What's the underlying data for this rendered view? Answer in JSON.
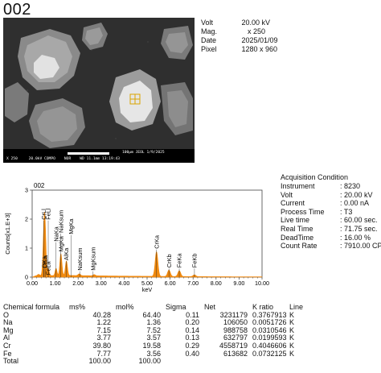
{
  "title": "002",
  "image_caption": {
    "scale": "100μm",
    "org": "JEOL",
    "date": "1/9/2025",
    "line2": "X 250     20.0kV COMPO    NOR    WD 11.1mm 13:19:43"
  },
  "metadata": [
    {
      "key": "Volt",
      "value": "20.00 kV"
    },
    {
      "key": "Mag.",
      "value": "   x 250"
    },
    {
      "key": "Date",
      "value": "2025/01/09"
    },
    {
      "key": "Pixel",
      "value": "1280 x 960"
    }
  ],
  "acquisition": {
    "heading": "Acquisition Condition",
    "rows": [
      {
        "key": "Instrument",
        "value": ": 8230"
      },
      {
        "key": "Volt",
        "value": ":  20.00 kV"
      },
      {
        "key": "Current",
        "value": ": 0.00 nA"
      },
      {
        "key": "Process Time",
        "value": ": T3"
      },
      {
        "key": "Live time",
        "value": ": 60.00 sec."
      },
      {
        "key": "Real Time",
        "value": ": 71.75 sec."
      },
      {
        "key": "DeadTime",
        "value": ": 16.00 %"
      },
      {
        "key": "Count Rate",
        "value": ": 7910.00 CPS"
      }
    ]
  },
  "chart_data": {
    "type": "area",
    "title": "002",
    "xlabel": "keV",
    "ylabel": "Counts[x1.E+3]",
    "xlim": [
      0,
      10
    ],
    "ylim": [
      0,
      3
    ],
    "x_ticks": [
      "0.00",
      "1.00",
      "2.00",
      "3.00",
      "4.00",
      "5.00",
      "6.00",
      "7.00",
      "8.00",
      "9.00",
      "10.00"
    ],
    "y_ticks": [
      "0",
      "1",
      "2",
      "3"
    ],
    "grid": false,
    "color": "#f08a10",
    "peaks": [
      {
        "x": 0.28,
        "y": 0.05,
        "w": 0.05
      },
      {
        "x": 0.52,
        "y": 1.6,
        "w": 0.045
      },
      {
        "x": 0.57,
        "y": 1.0,
        "w": 0.04
      },
      {
        "x": 0.7,
        "y": 0.25,
        "w": 0.04
      },
      {
        "x": 1.04,
        "y": 0.25,
        "w": 0.04
      },
      {
        "x": 1.25,
        "y": 0.75,
        "w": 0.045
      },
      {
        "x": 1.49,
        "y": 0.5,
        "w": 0.045
      },
      {
        "x": 2.05,
        "y": 0.06,
        "w": 0.05
      },
      {
        "x": 2.7,
        "y": 0.04,
        "w": 0.05
      },
      {
        "x": 5.41,
        "y": 0.85,
        "w": 0.06
      },
      {
        "x": 5.95,
        "y": 0.22,
        "w": 0.06
      },
      {
        "x": 6.4,
        "y": 0.2,
        "w": 0.06
      },
      {
        "x": 7.06,
        "y": 0.06,
        "w": 0.06
      }
    ],
    "background": 0.06,
    "labels": [
      {
        "text": "OKa",
        "x": 0.52,
        "y": 0.28
      },
      {
        "text": "CrLa",
        "x": 0.57,
        "y": 0.28
      },
      {
        "text": "CrLl",
        "x": 0.5,
        "y": 1.95
      },
      {
        "text": "FeLl",
        "x": 0.7,
        "y": 1.95
      },
      {
        "text": "FeLa",
        "x": 0.7,
        "y": 0.05
      },
      {
        "text": "NaKa",
        "x": 1.04,
        "y": 1.2
      },
      {
        "text": "NaKsum",
        "x": 1.25,
        "y": 1.5
      },
      {
        "text": "MgKa",
        "x": 1.25,
        "y": 0.85
      },
      {
        "text": "AlKa",
        "x": 1.49,
        "y": 0.55
      },
      {
        "text": "MgKa",
        "x": 1.7,
        "y": 1.45
      },
      {
        "text": "NaKsum",
        "x": 2.07,
        "y": 0.2
      },
      {
        "text": "MgKsum",
        "x": 2.65,
        "y": 0.2
      },
      {
        "text": "CrKa",
        "x": 5.41,
        "y": 0.95
      },
      {
        "text": "CrKb",
        "x": 5.95,
        "y": 0.3
      },
      {
        "text": "FeKa",
        "x": 6.4,
        "y": 0.3
      },
      {
        "text": "FeKb",
        "x": 7.06,
        "y": 0.3
      }
    ]
  },
  "results": {
    "headers": [
      "Chemical formula",
      "ms%",
      "mol%",
      "Sigma",
      "Net",
      "K ratio",
      "Line"
    ],
    "rows": [
      [
        "O",
        "40.28",
        "64.40",
        "0.11",
        "3231179",
        "0.3767913",
        "K"
      ],
      [
        "Na",
        "1.22",
        "1.36",
        "0.20",
        "106050",
        "0.0051726",
        "K"
      ],
      [
        "Mg",
        "7.15",
        "7.52",
        "0.14",
        "988758",
        "0.0310546",
        "K"
      ],
      [
        "Al",
        "3.77",
        "3.57",
        "0.13",
        "632797",
        "0.0199593",
        "K"
      ],
      [
        "Cr",
        "39.80",
        "19.58",
        "0.29",
        "4558719",
        "0.4046606",
        "K"
      ],
      [
        "Fe",
        "7.77",
        "3.56",
        "0.40",
        "613682",
        "0.0732125",
        "K"
      ],
      [
        "Total",
        "100.00",
        "100.00",
        "",
        "",
        "",
        ""
      ]
    ]
  }
}
